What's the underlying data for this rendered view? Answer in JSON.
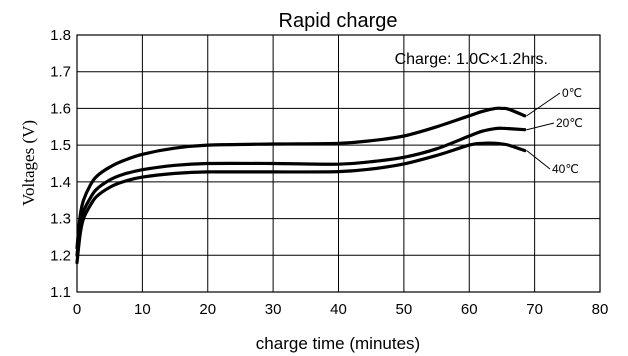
{
  "chart_data": {
    "type": "line",
    "title": "Rapid charge",
    "annotation": "Charge: 1.0C×1.2hrs.",
    "xlabel": "charge time (minutes)",
    "ylabel": "Voltages (V)",
    "xlim": [
      0,
      80
    ],
    "ylim": [
      1.1,
      1.8
    ],
    "x_ticks": [
      0,
      10,
      20,
      30,
      40,
      50,
      60,
      70,
      80
    ],
    "x_tick_labels": [
      "0",
      "10",
      "20",
      "30",
      "40",
      "50",
      "60",
      "70",
      "80"
    ],
    "y_ticks": [
      1.1,
      1.2,
      1.3,
      1.4,
      1.5,
      1.6,
      1.7,
      1.8
    ],
    "y_tick_labels": [
      "1.1",
      "1.2",
      "1.3",
      "1.4",
      "1.5",
      "1.6",
      "1.7",
      "1.8"
    ],
    "grid": true,
    "legend": "inline labels at right end of curves",
    "series": [
      {
        "name": "0℃",
        "x": [
          0,
          0.5,
          1,
          2,
          3,
          5,
          7,
          10,
          15,
          20,
          30,
          40,
          45,
          50,
          55,
          60,
          62,
          64,
          65,
          66,
          68.5
        ],
        "y": [
          1.22,
          1.31,
          1.35,
          1.39,
          1.415,
          1.44,
          1.457,
          1.475,
          1.492,
          1.5,
          1.503,
          1.505,
          1.512,
          1.525,
          1.55,
          1.58,
          1.592,
          1.6,
          1.6,
          1.598,
          1.58
        ]
      },
      {
        "name": "20℃",
        "x": [
          0,
          0.5,
          1,
          2,
          3,
          5,
          7,
          10,
          15,
          20,
          30,
          40,
          45,
          50,
          55,
          60,
          62,
          64,
          65,
          66,
          68.5
        ],
        "y": [
          1.2,
          1.28,
          1.32,
          1.355,
          1.38,
          1.405,
          1.42,
          1.433,
          1.445,
          1.45,
          1.45,
          1.448,
          1.455,
          1.467,
          1.49,
          1.525,
          1.538,
          1.545,
          1.546,
          1.545,
          1.542
        ]
      },
      {
        "name": "40℃",
        "x": [
          0,
          0.5,
          1,
          2,
          3,
          5,
          7,
          10,
          15,
          20,
          30,
          40,
          45,
          50,
          55,
          60,
          62,
          64,
          65,
          66,
          68.5
        ],
        "y": [
          1.18,
          1.26,
          1.3,
          1.335,
          1.36,
          1.385,
          1.4,
          1.413,
          1.423,
          1.427,
          1.427,
          1.428,
          1.435,
          1.449,
          1.472,
          1.5,
          1.505,
          1.505,
          1.503,
          1.5,
          1.485
        ]
      }
    ]
  }
}
